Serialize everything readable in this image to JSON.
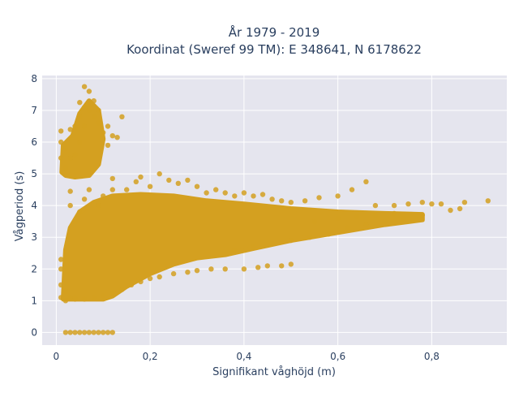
{
  "chart_data": {
    "type": "scatter",
    "title_line1": "År 1979 - 2019",
    "title_line2": "Koordinat (Sweref 99 TM): E 348641, N 6178622",
    "xlabel": "Signifikant våghöjd (m)",
    "ylabel": "Vågperiod (s)",
    "xlim": [
      -0.03,
      0.96
    ],
    "ylim": [
      -0.4,
      8.1
    ],
    "x_ticks": [
      0,
      0.2,
      0.4,
      0.6,
      0.8
    ],
    "x_tick_labels": [
      "0",
      "0,2",
      "0,4",
      "0,6",
      "0,8"
    ],
    "y_ticks": [
      0,
      1,
      2,
      3,
      4,
      5,
      6,
      7,
      8
    ],
    "y_tick_labels": [
      "0",
      "1",
      "2",
      "3",
      "4",
      "5",
      "6",
      "7",
      "8"
    ],
    "grid": true,
    "marker_color": "#D4A020",
    "plot_bgcolor": "#E5E5EE",
    "series": [
      {
        "points": [
          [
            0.02,
            0
          ],
          [
            0.03,
            0
          ],
          [
            0.04,
            0
          ],
          [
            0.05,
            0
          ],
          [
            0.06,
            0
          ],
          [
            0.07,
            0
          ],
          [
            0.08,
            0
          ],
          [
            0.09,
            0
          ],
          [
            0.1,
            0
          ],
          [
            0.11,
            0
          ],
          [
            0.12,
            0
          ],
          [
            0.01,
            1.1
          ],
          [
            0.01,
            1.5
          ],
          [
            0.01,
            2.0
          ],
          [
            0.01,
            2.3
          ],
          [
            0.02,
            1.0
          ],
          [
            0.02,
            1.3
          ],
          [
            0.03,
            1.1
          ],
          [
            0.04,
            1.05
          ],
          [
            0.01,
            5.5
          ],
          [
            0.01,
            6.0
          ],
          [
            0.01,
            6.35
          ],
          [
            0.02,
            5.2
          ],
          [
            0.02,
            5.8
          ],
          [
            0.03,
            5.5
          ],
          [
            0.03,
            6.4
          ],
          [
            0.04,
            5.6
          ],
          [
            0.04,
            6.5
          ],
          [
            0.05,
            6.0
          ],
          [
            0.05,
            6.8
          ],
          [
            0.05,
            7.25
          ],
          [
            0.06,
            6.5
          ],
          [
            0.06,
            7.1
          ],
          [
            0.06,
            7.75
          ],
          [
            0.07,
            7.0
          ],
          [
            0.07,
            7.6
          ],
          [
            0.08,
            6.8
          ],
          [
            0.08,
            7.3
          ],
          [
            0.09,
            6.6
          ],
          [
            0.09,
            7.0
          ],
          [
            0.1,
            6.3
          ],
          [
            0.11,
            5.9
          ],
          [
            0.11,
            6.5
          ],
          [
            0.12,
            6.2
          ],
          [
            0.14,
            6.8
          ],
          [
            0.13,
            6.15
          ],
          [
            0.03,
            4.0
          ],
          [
            0.03,
            4.45
          ],
          [
            0.04,
            3.5
          ],
          [
            0.05,
            3.8
          ],
          [
            0.06,
            4.2
          ],
          [
            0.07,
            4.5
          ],
          [
            0.09,
            4.0
          ],
          [
            0.1,
            4.3
          ],
          [
            0.12,
            4.5
          ],
          [
            0.12,
            4.85
          ],
          [
            0.15,
            4.5
          ],
          [
            0.17,
            4.75
          ],
          [
            0.18,
            4.9
          ],
          [
            0.2,
            4.6
          ],
          [
            0.22,
            5.0
          ],
          [
            0.24,
            4.8
          ],
          [
            0.26,
            4.7
          ],
          [
            0.28,
            4.8
          ],
          [
            0.3,
            4.6
          ],
          [
            0.32,
            4.4
          ],
          [
            0.34,
            4.5
          ],
          [
            0.36,
            4.4
          ],
          [
            0.38,
            4.3
          ],
          [
            0.4,
            4.4
          ],
          [
            0.42,
            4.3
          ],
          [
            0.44,
            4.35
          ],
          [
            0.46,
            4.2
          ],
          [
            0.48,
            4.15
          ],
          [
            0.5,
            4.1
          ],
          [
            0.53,
            4.15
          ],
          [
            0.56,
            4.25
          ],
          [
            0.6,
            4.3
          ],
          [
            0.63,
            4.5
          ],
          [
            0.66,
            4.75
          ],
          [
            0.68,
            4.0
          ],
          [
            0.72,
            4.0
          ],
          [
            0.75,
            4.05
          ],
          [
            0.78,
            4.1
          ],
          [
            0.8,
            4.05
          ],
          [
            0.82,
            4.05
          ],
          [
            0.84,
            3.85
          ],
          [
            0.86,
            3.9
          ],
          [
            0.87,
            4.1
          ],
          [
            0.92,
            4.15
          ],
          [
            0.04,
            1.1
          ],
          [
            0.06,
            1.05
          ],
          [
            0.08,
            1.1
          ],
          [
            0.1,
            1.15
          ],
          [
            0.12,
            1.25
          ],
          [
            0.14,
            1.35
          ],
          [
            0.16,
            1.5
          ],
          [
            0.18,
            1.6
          ],
          [
            0.2,
            1.7
          ],
          [
            0.22,
            1.75
          ],
          [
            0.25,
            1.85
          ],
          [
            0.28,
            1.9
          ],
          [
            0.3,
            1.95
          ],
          [
            0.33,
            2.0
          ],
          [
            0.36,
            2.0
          ],
          [
            0.4,
            2.0
          ],
          [
            0.43,
            2.05
          ],
          [
            0.45,
            2.1
          ],
          [
            0.48,
            2.1
          ],
          [
            0.5,
            2.15
          ],
          [
            0.38,
            2.6
          ],
          [
            0.42,
            2.7
          ],
          [
            0.46,
            2.8
          ],
          [
            0.5,
            2.9
          ],
          [
            0.54,
            3.0
          ],
          [
            0.58,
            3.1
          ],
          [
            0.62,
            3.3
          ],
          [
            0.66,
            3.4
          ],
          [
            0.7,
            3.5
          ],
          [
            0.74,
            3.6
          ],
          [
            0.78,
            3.7
          ],
          [
            0.55,
            3.5
          ],
          [
            0.6,
            3.6
          ],
          [
            0.64,
            3.65
          ],
          [
            0.68,
            3.7
          ],
          [
            0.72,
            3.75
          ]
        ]
      }
    ]
  }
}
